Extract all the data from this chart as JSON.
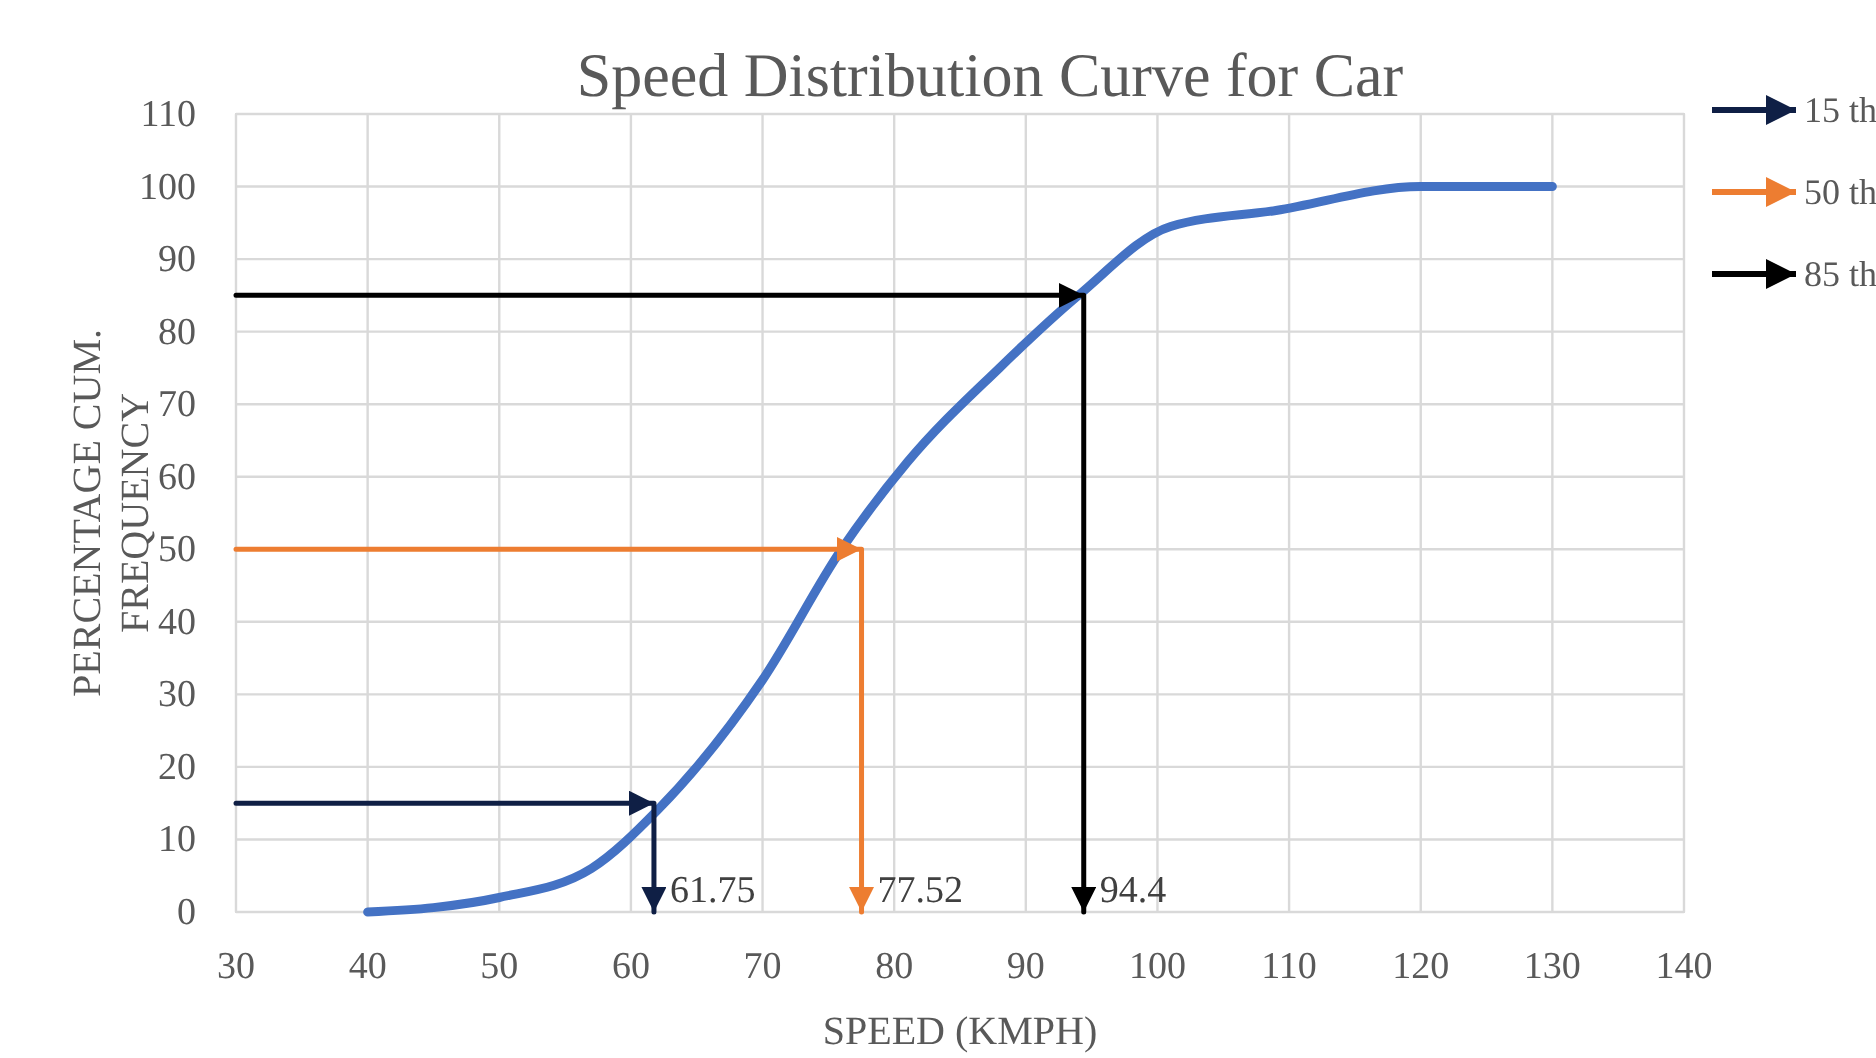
{
  "chart_data": {
    "type": "line",
    "title": "Speed Distribution Curve for Car",
    "xlabel": "SPEED (KMPH)",
    "ylabel": "PERCENTAGE CUM. FREQUENCY",
    "xlim": [
      30,
      140
    ],
    "xticks": [
      30,
      40,
      50,
      60,
      70,
      80,
      90,
      100,
      110,
      120,
      130,
      140
    ],
    "ylim": [
      0,
      110
    ],
    "yticks": [
      0,
      10,
      20,
      30,
      40,
      50,
      60,
      70,
      80,
      90,
      100,
      110
    ],
    "grid": true,
    "legend": "top right",
    "line_style": "solid",
    "series": [
      {
        "color": "#4472c4",
        "x": [
          40,
          45,
          50,
          57,
          62,
          70,
          76,
          81,
          88,
          94,
          101,
          109,
          120,
          130
        ],
        "values": [
          0,
          0.6,
          2,
          6,
          14,
          32,
          50,
          62,
          75,
          85,
          94.5,
          96.7,
          100,
          100
        ]
      },
      {
        "name": "15 th",
        "color": "#0f1f45",
        "x": [
          30,
          61.75,
          61.75
        ],
        "values": [
          15,
          15,
          0
        ]
      },
      {
        "name": "50 th",
        "color": "#ed7d31",
        "x": [
          30,
          77.52,
          77.52
        ],
        "values": [
          50,
          50,
          0
        ]
      },
      {
        "name": "85 th",
        "color": "#000000",
        "x": [
          30,
          94.4,
          94.4
        ],
        "values": [
          85,
          85,
          0
        ]
      }
    ],
    "annotations": [
      {
        "text": "61.75",
        "x": 61.75,
        "y": 0
      },
      {
        "text": "77.52",
        "x": 77.52,
        "y": 0
      },
      {
        "text": "94.4",
        "x": 94.4,
        "y": 0
      }
    ]
  }
}
